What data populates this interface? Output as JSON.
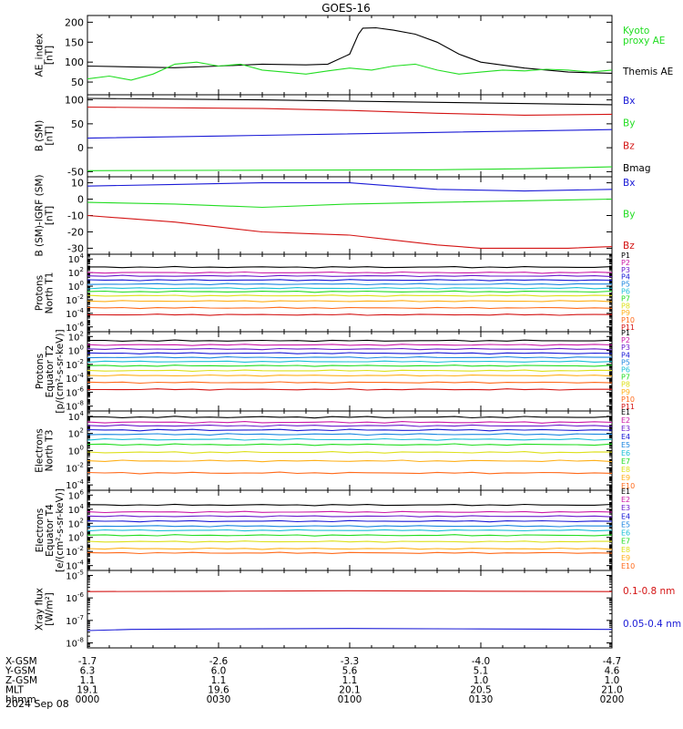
{
  "title": "GOES-16",
  "date": "2024 Sep 08",
  "colors": {
    "black": "#000000",
    "green": "#22dd22",
    "blue": "#1a1ad6",
    "red": "#d41414",
    "darkred": "#a01010",
    "P": [
      "#000000",
      "#cc1aa8",
      "#6a1acc",
      "#1a1ad6",
      "#1a86e0",
      "#1abfd6",
      "#22dd22",
      "#dde01a",
      "#ffb01a",
      "#ff6a1a",
      "#d41414",
      "#a01010"
    ]
  },
  "panels": [
    {
      "key": "ae",
      "ylabel": [
        "AE_index",
        "[nT]"
      ],
      "log": false,
      "ylim": [
        25,
        210
      ],
      "ticks": [
        {
          "v": 50,
          "t": "50"
        },
        {
          "v": 100,
          "t": "100"
        },
        {
          "v": 150,
          "t": "150"
        },
        {
          "v": 200,
          "t": "200"
        }
      ],
      "legend": [
        {
          "text": "Kyoto",
          "color": "#22dd22"
        },
        {
          "text": "proxy AE",
          "color": "#22dd22"
        },
        {
          "text": ""
        },
        {
          "text": "Themis AE",
          "color": "#000000"
        }
      ],
      "series": [
        {
          "name": "Themis AE",
          "color": "#000000",
          "t": [
            0,
            10,
            20,
            30,
            40,
            50,
            55,
            60,
            62,
            63,
            66,
            70,
            75,
            80,
            85,
            90,
            100,
            110,
            120
          ],
          "y": [
            90,
            88,
            86,
            90,
            95,
            93,
            95,
            120,
            170,
            185,
            186,
            180,
            170,
            150,
            120,
            100,
            85,
            75,
            72
          ]
        },
        {
          "name": "Kyoto proxy AE",
          "color": "#22dd22",
          "t": [
            0,
            5,
            10,
            15,
            20,
            25,
            30,
            35,
            40,
            45,
            50,
            55,
            60,
            65,
            70,
            75,
            80,
            85,
            90,
            95,
            100,
            105,
            110,
            115,
            120
          ],
          "y": [
            58,
            65,
            55,
            70,
            95,
            100,
            90,
            95,
            80,
            75,
            70,
            78,
            85,
            80,
            90,
            95,
            80,
            70,
            75,
            80,
            78,
            82,
            80,
            75,
            80
          ]
        }
      ]
    },
    {
      "key": "bsm",
      "ylabel": [
        "B (SM)",
        "[nT]"
      ],
      "log": false,
      "ylim": [
        -55,
        105
      ],
      "ticks": [
        {
          "v": -50,
          "t": "-50"
        },
        {
          "v": 0,
          "t": "0"
        },
        {
          "v": 50,
          "t": "50"
        },
        {
          "v": 100,
          "t": "100"
        }
      ],
      "legend": [
        {
          "text": "Bx",
          "color": "#1a1ad6"
        },
        {
          "text": "By",
          "color": "#22dd22"
        },
        {
          "text": "Bz",
          "color": "#d41414"
        },
        {
          "text": "Bmag",
          "color": "#000000"
        }
      ],
      "series": [
        {
          "name": "Bx",
          "color": "#1a1ad6",
          "t": [
            0,
            40,
            80,
            120
          ],
          "y": [
            20,
            26,
            32,
            38
          ]
        },
        {
          "name": "By",
          "color": "#22dd22",
          "t": [
            0,
            40,
            80,
            100,
            120
          ],
          "y": [
            -48,
            -47,
            -46,
            -44,
            -40
          ]
        },
        {
          "name": "Bz",
          "color": "#d41414",
          "t": [
            0,
            40,
            60,
            80,
            100,
            120
          ],
          "y": [
            85,
            82,
            78,
            72,
            68,
            70
          ]
        },
        {
          "name": "Bmag",
          "color": "#000000",
          "t": [
            0,
            40,
            80,
            120
          ],
          "y": [
            103,
            100,
            95,
            90
          ]
        }
      ]
    },
    {
      "key": "igrf",
      "ylabel": [
        "B (SM)-IGRF (SM)",
        "[nT]"
      ],
      "log": false,
      "ylim": [
        -32,
        12
      ],
      "ticks": [
        {
          "v": -30,
          "t": "-30"
        },
        {
          "v": -20,
          "t": "-20"
        },
        {
          "v": -10,
          "t": "-10"
        },
        {
          "v": 0,
          "t": "0"
        },
        {
          "v": 10,
          "t": "10"
        }
      ],
      "legend": [
        {
          "text": "Bx",
          "color": "#1a1ad6"
        },
        {
          "text": "By",
          "color": "#22dd22"
        },
        {
          "text": "Bz",
          "color": "#d41414"
        }
      ],
      "series": [
        {
          "name": "Bx",
          "color": "#1a1ad6",
          "t": [
            0,
            20,
            40,
            60,
            70,
            80,
            100,
            120
          ],
          "y": [
            8,
            9,
            10,
            10,
            8,
            6,
            5,
            6
          ]
        },
        {
          "name": "By",
          "color": "#22dd22",
          "t": [
            0,
            20,
            40,
            60,
            80,
            100,
            120
          ],
          "y": [
            -2,
            -3,
            -5,
            -3,
            -2,
            -1,
            0
          ]
        },
        {
          "name": "Bz",
          "color": "#d41414",
          "t": [
            0,
            10,
            20,
            30,
            40,
            50,
            60,
            70,
            80,
            90,
            100,
            110,
            120
          ],
          "y": [
            -10,
            -12,
            -14,
            -17,
            -20,
            -21,
            -22,
            -25,
            -28,
            -30,
            -30,
            -30,
            -29
          ]
        }
      ]
    },
    {
      "key": "pn",
      "ylabel": [
        "Protons",
        "North T1"
      ],
      "log": true,
      "ylim": [
        -6.3,
        4.3
      ],
      "ticks": [
        {
          "v": 4,
          "t": "4"
        },
        {
          "v": 2,
          "t": "2"
        },
        {
          "v": 0,
          "t": "0"
        },
        {
          "v": -2,
          "t": "-2"
        },
        {
          "v": -4,
          "t": "-4"
        },
        {
          "v": -6,
          "t": "-6"
        }
      ],
      "chan": [
        "P1",
        "P2",
        "P3",
        "P4",
        "P5",
        "P6",
        "P7",
        "P8",
        "P9",
        "P10",
        "P11"
      ],
      "levels": [
        2.8,
        2.0,
        1.5,
        0.9,
        0.3,
        -0.3,
        -0.8,
        -1.4,
        -2.2,
        -3.2,
        -4.2
      ]
    },
    {
      "key": "pe",
      "ylabel": [
        "Protons",
        "Equator T2",
        "[p/(cm²-s-sr-keV)]"
      ],
      "log": true,
      "ylim": [
        -8.3,
        2.3
      ],
      "ticks": [
        {
          "v": 2,
          "t": "2"
        },
        {
          "v": 0,
          "t": "0"
        },
        {
          "v": -2,
          "t": "-2"
        },
        {
          "v": -4,
          "t": "-4"
        },
        {
          "v": -6,
          "t": "-6"
        },
        {
          "v": -8,
          "t": "-8"
        }
      ],
      "chan": [
        "P1",
        "P2",
        "P3",
        "P4",
        "P5",
        "P6",
        "P7",
        "P8",
        "P9",
        "P10",
        "P11"
      ],
      "levels": [
        1.4,
        0.8,
        0.2,
        -0.4,
        -1.0,
        -1.6,
        -2.2,
        -2.9,
        -3.6,
        -4.6,
        -5.6
      ]
    },
    {
      "key": "en",
      "ylabel": [
        "Electrons",
        "North T3"
      ],
      "log": true,
      "ylim": [
        -4.3,
        4.3
      ],
      "ticks": [
        {
          "v": 4,
          "t": "4"
        },
        {
          "v": 2,
          "t": "2"
        },
        {
          "v": 0,
          "t": "0"
        },
        {
          "v": -2,
          "t": "-2"
        },
        {
          "v": -4,
          "t": "-4"
        }
      ],
      "chan": [
        "E1",
        "E2",
        "E3",
        "E4",
        "E5",
        "E6",
        "E7",
        "E8",
        "E9",
        "E10"
      ],
      "levels": [
        3.9,
        3.3,
        2.9,
        2.4,
        1.9,
        1.3,
        0.7,
        -0.2,
        -1.2,
        -2.6
      ]
    },
    {
      "key": "ee",
      "ylabel": [
        "Electrons",
        "Equator T4",
        "[e/(cm²-s-sr-keV)]"
      ],
      "log": true,
      "ylim": [
        -4.3,
        6.3
      ],
      "ticks": [
        {
          "v": 6,
          "t": "6"
        },
        {
          "v": 4,
          "t": "4"
        },
        {
          "v": 2,
          "t": "2"
        },
        {
          "v": 0,
          "t": "0"
        },
        {
          "v": -2,
          "t": "-2"
        },
        {
          "v": -4,
          "t": "-4"
        }
      ],
      "chan": [
        "E1",
        "E2",
        "E3",
        "E4",
        "E5",
        "E6",
        "E7",
        "E8",
        "E9",
        "E10"
      ],
      "levels": [
        4.6,
        3.6,
        3.0,
        2.3,
        1.6,
        1.0,
        0.3,
        -0.6,
        -1.6,
        -2.2
      ]
    },
    {
      "key": "xr",
      "ylabel": [
        "Xray flux",
        "[W/m²]"
      ],
      "log": true,
      "ylim": [
        -8.1,
        -4.9
      ],
      "ticks": [
        {
          "v": -5,
          "t": "-5"
        },
        {
          "v": -6,
          "t": "-6"
        },
        {
          "v": -7,
          "t": "-7"
        },
        {
          "v": -8,
          "t": "-8"
        }
      ],
      "legend": [
        {
          "text": "0.1-0.8 nm",
          "color": "#d41414"
        },
        {
          "text": "0.05-0.4 nm",
          "color": "#1a1ad6"
        }
      ],
      "series": [
        {
          "name": "0.1-0.8 nm",
          "color": "#d41414",
          "t": [
            0,
            30,
            60,
            90,
            120
          ],
          "y": [
            -5.72,
            -5.7,
            -5.68,
            -5.7,
            -5.72
          ]
        },
        {
          "name": "0.05-0.4 nm",
          "color": "#1a1ad6",
          "t": [
            0,
            10,
            30,
            60,
            90,
            120
          ],
          "y": [
            -7.45,
            -7.4,
            -7.38,
            -7.36,
            -7.38,
            -7.4
          ]
        }
      ]
    }
  ],
  "xaxis": {
    "tmin": 0,
    "tmax": 120,
    "tick_times": [
      0,
      30,
      60,
      90,
      120
    ],
    "rows": [
      {
        "label": "X-GSM",
        "vals": [
          "-1.7",
          "-2.6",
          "-3.3",
          "-4.0",
          "-4.7"
        ]
      },
      {
        "label": "Y-GSM",
        "vals": [
          "6.3",
          "6.0",
          "5.6",
          "5.1",
          "4.6"
        ]
      },
      {
        "label": "Z-GSM",
        "vals": [
          "1.1",
          "1.1",
          "1.1",
          "1.0",
          "1.0"
        ]
      },
      {
        "label": "MLT",
        "vals": [
          "19.1",
          "19.6",
          "20.1",
          "20.5",
          "21.0"
        ]
      },
      {
        "label": "hhmm",
        "vals": [
          "0000",
          "0030",
          "0100",
          "0130",
          "0200"
        ]
      }
    ]
  }
}
